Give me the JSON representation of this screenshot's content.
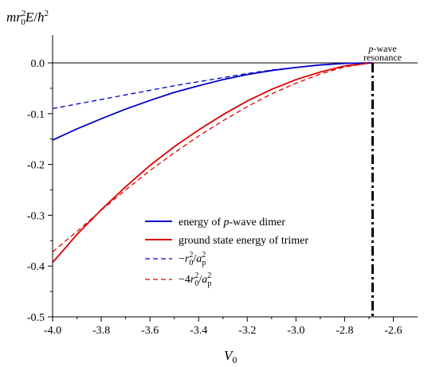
{
  "chart_data": {
    "type": "line",
    "xlabel": "V0",
    "ylabel": "mr0²E/ħ²",
    "xlim": [
      -4.0,
      -2.5
    ],
    "ylim": [
      -0.5,
      0.05
    ],
    "x_ticks": [
      -4.0,
      -3.8,
      -3.6,
      -3.4,
      -3.2,
      -3.0,
      -2.8,
      -2.6
    ],
    "x_tick_labels": [
      "-4.0",
      "-3.8",
      "-3.6",
      "-3.4",
      "-3.2",
      "-3.0",
      "-2.8",
      "-2.6"
    ],
    "y_ticks": [
      0.0,
      -0.1,
      -0.2,
      -0.3,
      -0.4,
      -0.5
    ],
    "y_tick_labels": [
      "0.0",
      "-0.1",
      "-0.2",
      "-0.3",
      "-0.4",
      "-0.5"
    ],
    "grid": false,
    "legend_position": "lower-center",
    "resonance_x": -2.685,
    "resonance_label": [
      "p-wave",
      "resonance"
    ],
    "series": [
      {
        "name": "energy of p-wave dimer",
        "color": "#0000cc",
        "dash": "solid",
        "x": [
          -4.0,
          -3.9,
          -3.8,
          -3.7,
          -3.6,
          -3.5,
          -3.4,
          -3.3,
          -3.2,
          -3.1,
          -3.0,
          -2.9,
          -2.8,
          -2.7,
          -2.685
        ],
        "y": [
          -0.152,
          -0.13,
          -0.11,
          -0.091,
          -0.074,
          -0.058,
          -0.045,
          -0.033,
          -0.023,
          -0.015,
          -0.009,
          -0.004,
          -0.001,
          -0.0001,
          0.0
        ]
      },
      {
        "name": "ground state energy of trimer",
        "color": "#dd0000",
        "dash": "solid",
        "x": [
          -4.0,
          -3.9,
          -3.8,
          -3.7,
          -3.6,
          -3.5,
          -3.4,
          -3.3,
          -3.2,
          -3.1,
          -3.0,
          -2.9,
          -2.8,
          -2.7,
          -2.685
        ],
        "y": [
          -0.393,
          -0.338,
          -0.289,
          -0.244,
          -0.202,
          -0.165,
          -0.132,
          -0.102,
          -0.075,
          -0.052,
          -0.033,
          -0.018,
          -0.006,
          -0.0005,
          0.0
        ]
      },
      {
        "name": "-r0²/ap²",
        "color": "#0000cc",
        "dash": "dashed",
        "x": [
          -4.0,
          -3.9,
          -3.8,
          -3.7,
          -3.6,
          -3.5,
          -3.4,
          -3.3,
          -3.2,
          -3.1,
          -3.0,
          -2.9,
          -2.8,
          -2.7,
          -2.685
        ],
        "y": [
          -0.09,
          -0.081,
          -0.072,
          -0.063,
          -0.054,
          -0.045,
          -0.037,
          -0.029,
          -0.021,
          -0.014,
          -0.009,
          -0.004,
          -0.001,
          -0.0001,
          0.0
        ]
      },
      {
        "name": "-4r0²/ap²",
        "color": "#dd0000",
        "dash": "dashed",
        "x": [
          -4.0,
          -3.9,
          -3.8,
          -3.7,
          -3.6,
          -3.5,
          -3.4,
          -3.3,
          -3.2,
          -3.1,
          -3.0,
          -2.9,
          -2.8,
          -2.7,
          -2.685
        ],
        "y": [
          -0.372,
          -0.332,
          -0.29,
          -0.25,
          -0.212,
          -0.177,
          -0.144,
          -0.114,
          -0.086,
          -0.061,
          -0.04,
          -0.022,
          -0.008,
          -0.0006,
          0.0
        ]
      }
    ]
  }
}
